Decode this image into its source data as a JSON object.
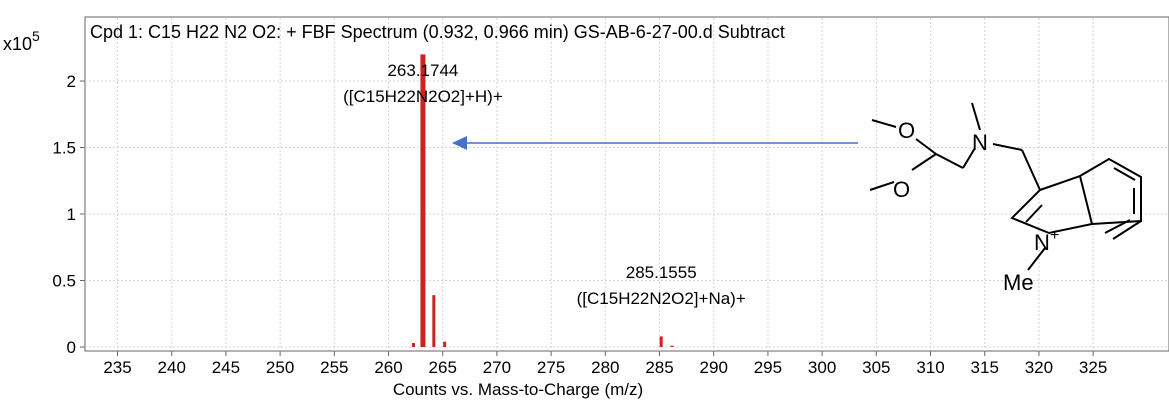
{
  "chart_data": {
    "type": "bar",
    "title": "Cpd 1: C15 H22 N2 O2: + FBF Spectrum (0.932, 0.966 min) GS-AB-6-27-00.d  Subtract",
    "xlabel": "Counts vs. Mass-to-Charge (m/z)",
    "ylabel": "",
    "y_multiplier": {
      "base": "x10",
      "exponent": "5"
    },
    "xlim": [
      232,
      332
    ],
    "ylim": [
      0,
      2.1
    ],
    "x_ticks": [
      235,
      240,
      245,
      250,
      255,
      260,
      265,
      270,
      275,
      280,
      285,
      290,
      295,
      300,
      305,
      310,
      315,
      320,
      325
    ],
    "y_ticks": [
      0,
      0.5,
      1,
      1.5,
      2
    ],
    "y_tick_labels": [
      "0",
      "0.5",
      "1",
      "1.5",
      "2"
    ],
    "grid": true,
    "series": [
      {
        "color": "#cc2222",
        "x": [
          262.3,
          263.1744,
          264.18,
          265.18,
          285.1555,
          286.16
        ],
        "values": [
          0.03,
          2.2,
          0.39,
          0.04,
          0.08,
          0.01
        ]
      }
    ],
    "annotations": [
      {
        "x": 263.1744,
        "line1": "263.1744",
        "line2": "([C15H22N2O2]+H)+"
      },
      {
        "x": 285.1555,
        "line1": "285.1555",
        "line2": "([C15H22N2O2]+Na)+"
      }
    ],
    "structure_labels": {
      "o1": "O",
      "o2": "O",
      "n_amine": "N",
      "n_plus": "N",
      "plus": "+",
      "methyl": "Me"
    },
    "arrow_color": "#4472c4"
  }
}
